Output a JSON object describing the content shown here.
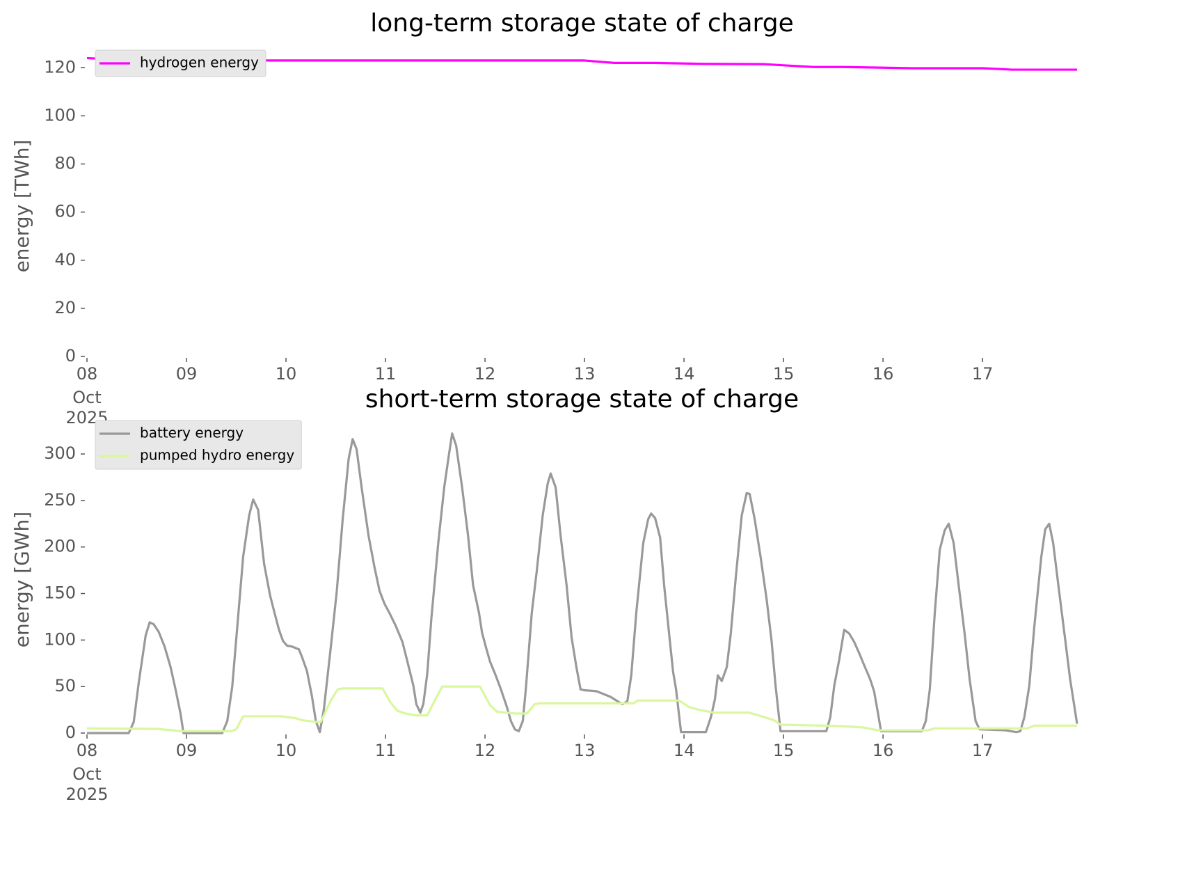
{
  "chart_data": [
    {
      "type": "line",
      "title": "long-term storage state of charge",
      "ylabel": "energy [TWh]",
      "xlim": [
        8,
        17.95
      ],
      "ylim": [
        0,
        125
      ],
      "xticks": [
        {
          "value": 8,
          "label": "08"
        },
        {
          "value": 9,
          "label": "09"
        },
        10,
        11,
        12,
        13,
        14,
        15,
        16,
        17
      ],
      "x_sublabels": [
        "Oct",
        "2025"
      ],
      "yticks": [
        0,
        20,
        40,
        60,
        80,
        100,
        120
      ],
      "legend": "upper left",
      "series": [
        {
          "name": "hydrogen energy",
          "color": "#ff00ff",
          "x": [
            8.0,
            8.5,
            13.0,
            13.3,
            13.7,
            14.2,
            14.8,
            15.0,
            15.3,
            15.6,
            16.3,
            17.0,
            17.3,
            17.95
          ],
          "values": [
            124,
            123,
            123,
            122,
            122,
            121.6,
            121.5,
            121,
            120.3,
            120.3,
            119.8,
            119.8,
            119.2,
            119.2
          ]
        }
      ]
    },
    {
      "type": "line",
      "title": "short-term storage state of charge",
      "ylabel": "energy [GWh]",
      "xlim": [
        8,
        17.95
      ],
      "ylim": [
        0,
        330
      ],
      "xticks": [
        {
          "value": 8,
          "label": "08"
        },
        {
          "value": 9,
          "label": "09"
        },
        10,
        11,
        12,
        13,
        14,
        15,
        16,
        17
      ],
      "x_sublabels": [
        "Oct",
        "2025"
      ],
      "yticks": [
        0,
        50,
        100,
        150,
        200,
        250,
        300
      ],
      "legend": "upper left",
      "series": [
        {
          "name": "battery energy",
          "color": "#999999",
          "x": [
            8.0,
            8.42,
            8.47,
            8.52,
            8.59,
            8.63,
            8.67,
            8.72,
            8.78,
            8.84,
            8.89,
            8.94,
            8.97,
            9.36,
            9.41,
            9.46,
            9.57,
            9.63,
            9.67,
            9.72,
            9.78,
            9.84,
            9.89,
            9.93,
            9.97,
            10.01,
            10.06,
            10.13,
            10.16,
            10.21,
            10.26,
            10.3,
            10.34,
            10.38,
            10.45,
            10.51,
            10.57,
            10.63,
            10.67,
            10.71,
            10.76,
            10.83,
            10.89,
            10.94,
            10.99,
            11.04,
            11.1,
            11.17,
            11.22,
            11.28,
            11.31,
            11.35,
            11.38,
            11.42,
            11.46,
            11.53,
            11.59,
            11.64,
            11.67,
            11.71,
            11.77,
            11.83,
            11.88,
            11.94,
            11.97,
            12.01,
            12.05,
            12.1,
            12.16,
            12.22,
            12.26,
            12.3,
            12.34,
            12.38,
            12.41,
            12.47,
            12.52,
            12.58,
            12.63,
            12.66,
            12.71,
            12.76,
            12.82,
            12.87,
            12.92,
            12.96,
            13.0,
            13.12,
            13.26,
            13.38,
            13.43,
            13.47,
            13.52,
            13.59,
            13.64,
            13.67,
            13.71,
            13.76,
            13.8,
            13.85,
            13.89,
            13.92,
            13.97,
            14.22,
            14.27,
            14.31,
            14.34,
            14.38,
            14.43,
            14.47,
            14.52,
            14.58,
            14.63,
            14.66,
            14.71,
            14.77,
            14.83,
            14.88,
            14.92,
            14.97,
            15.43,
            15.47,
            15.51,
            15.56,
            15.61,
            15.66,
            15.71,
            15.76,
            15.81,
            15.87,
            15.91,
            15.95,
            15.98,
            16.39,
            16.43,
            16.47,
            16.52,
            16.57,
            16.62,
            16.66,
            16.71,
            16.76,
            16.82,
            16.87,
            16.93,
            16.97,
            17.23,
            17.34,
            17.38,
            17.42,
            17.47,
            17.52,
            17.59,
            17.63,
            17.67,
            17.71,
            17.77,
            17.83,
            17.88,
            17.95
          ],
          "values": [
            0,
            0,
            12,
            54,
            105,
            119,
            117,
            109,
            93,
            71,
            47,
            21,
            0,
            0,
            13,
            50,
            190,
            234,
            251,
            240,
            182,
            148,
            127,
            111,
            99,
            94,
            93,
            90,
            82,
            67,
            40,
            13,
            1,
            25,
            92,
            152,
            230,
            295,
            316,
            305,
            264,
            212,
            178,
            153,
            139,
            129,
            116,
            98,
            77,
            51,
            31,
            22,
            31,
            64,
            122,
            204,
            264,
            301,
            322,
            309,
            264,
            212,
            159,
            129,
            108,
            92,
            77,
            64,
            47,
            28,
            13,
            4,
            2,
            13,
            47,
            129,
            174,
            234,
            268,
            279,
            264,
            212,
            159,
            103,
            70,
            47,
            46,
            45,
            39,
            31,
            34,
            62,
            129,
            204,
            230,
            236,
            231,
            210,
            159,
            107,
            66,
            47,
            1,
            1,
            17,
            36,
            62,
            56,
            71,
            107,
            167,
            234,
            258,
            257,
            230,
            189,
            144,
            99,
            51,
            2,
            2,
            17,
            51,
            79,
            111,
            107,
            98,
            86,
            73,
            58,
            45,
            21,
            2,
            2,
            13,
            47,
            129,
            197,
            218,
            225,
            204,
            159,
            107,
            58,
            13,
            4,
            3,
            1,
            2,
            17,
            51,
            114,
            189,
            219,
            225,
            204,
            152,
            101,
            58,
            10
          ]
        },
        {
          "name": "pumped hydro energy",
          "color": "#d9f79f",
          "x": [
            8.0,
            8.7,
            8.95,
            9.45,
            9.5,
            9.57,
            9.95,
            10.1,
            10.15,
            10.3,
            10.35,
            10.45,
            10.52,
            10.57,
            10.97,
            11.05,
            11.12,
            11.2,
            11.3,
            11.42,
            11.5,
            11.57,
            11.95,
            12.05,
            12.12,
            12.3,
            12.42,
            12.5,
            12.55,
            13.0,
            13.5,
            13.53,
            13.95,
            14.05,
            14.15,
            14.3,
            14.65,
            14.75,
            14.9,
            14.97,
            15.4,
            15.65,
            15.8,
            15.95,
            16.45,
            16.52,
            16.6,
            17.0,
            17.45,
            17.52,
            17.95
          ],
          "values": [
            5,
            4.5,
            2,
            2,
            4,
            18,
            18,
            16,
            14,
            12,
            12,
            35,
            47,
            48,
            48,
            33,
            24,
            21,
            19,
            19,
            36,
            50,
            50,
            30,
            23,
            21,
            21,
            31,
            32,
            32,
            32,
            35,
            35,
            28,
            25,
            22,
            22,
            19,
            14,
            9,
            8,
            7,
            6,
            3,
            3,
            5,
            5,
            5,
            5,
            8,
            8
          ]
        }
      ]
    }
  ]
}
